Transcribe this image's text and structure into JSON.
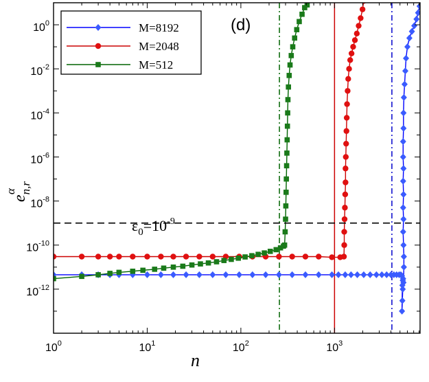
{
  "chart_data": {
    "type": "line",
    "panel_label": "(d)",
    "xlabel": "n",
    "ylabel": {
      "base": "e",
      "sub": "n,r",
      "sup": "α"
    },
    "x_scale": "log",
    "y_scale": "log",
    "xlim": [
      1,
      8192
    ],
    "ylim": [
      1e-14,
      10.0
    ],
    "grid": false,
    "legend_position": "top-left",
    "x_ticks": [
      {
        "value": 1,
        "base": "10",
        "exp": "0"
      },
      {
        "value": 10,
        "base": "10",
        "exp": "1"
      },
      {
        "value": 100,
        "base": "10",
        "exp": "2"
      },
      {
        "value": 1000,
        "base": "10",
        "exp": "3"
      }
    ],
    "y_ticks": [
      {
        "value": 1e-12,
        "base": "10",
        "exp": "-12"
      },
      {
        "value": 1e-10,
        "base": "10",
        "exp": "-10"
      },
      {
        "value": 1e-08,
        "base": "10",
        "exp": "-8"
      },
      {
        "value": 1e-06,
        "base": "10",
        "exp": "-6"
      },
      {
        "value": 0.0001,
        "base": "10",
        "exp": "-4"
      },
      {
        "value": 0.01,
        "base": "10",
        "exp": "-2"
      },
      {
        "value": 1,
        "base": "10",
        "exp": "0"
      }
    ],
    "threshold": {
      "value": 1e-09,
      "label_base": "ε",
      "label_sub": "0",
      "label_eq": "=10",
      "label_exp": "-9",
      "color": "#000000",
      "style": "dashed"
    },
    "vertical_lines": [
      {
        "x": 258,
        "color": "#006400",
        "style": "dashdot"
      },
      {
        "x": 1000,
        "color": "#cc0000",
        "style": "solid"
      },
      {
        "x": 4096,
        "color": "#0000cc",
        "style": "dashdot"
      }
    ],
    "series": [
      {
        "name": "M=8192",
        "color": "#0000ff",
        "marker_color": "#3a5bff",
        "marker": "diamond",
        "points": [
          [
            1,
            4.5e-12
          ],
          [
            2,
            4.5e-12
          ],
          [
            3,
            4.5e-12
          ],
          [
            4,
            4.5e-12
          ],
          [
            5,
            4.5e-12
          ],
          [
            7,
            4.5e-12
          ],
          [
            10,
            4.5e-12
          ],
          [
            14,
            4.5e-12
          ],
          [
            19,
            4.5e-12
          ],
          [
            26,
            4.5e-12
          ],
          [
            36,
            4.5e-12
          ],
          [
            50,
            4.5e-12
          ],
          [
            69,
            4.5e-12
          ],
          [
            96,
            4.5e-12
          ],
          [
            133,
            4.5e-12
          ],
          [
            184,
            4.5e-12
          ],
          [
            255,
            4.5e-12
          ],
          [
            353,
            4.5e-12
          ],
          [
            489,
            4.5e-12
          ],
          [
            677,
            4.5e-12
          ],
          [
            938,
            4.5e-12
          ],
          [
            1100,
            4.5e-12
          ],
          [
            1300,
            4.5e-12
          ],
          [
            1500,
            4.5e-12
          ],
          [
            1750,
            4.5e-12
          ],
          [
            2050,
            4.5e-12
          ],
          [
            2400,
            4.5e-12
          ],
          [
            2800,
            4.5e-12
          ],
          [
            3200,
            4.5e-12
          ],
          [
            3600,
            4.5e-12
          ],
          [
            4000,
            4.5e-12
          ],
          [
            4300,
            4.5e-12
          ],
          [
            4600,
            4.5e-12
          ],
          [
            4900,
            4.5e-12
          ],
          [
            5100,
            4.5e-12
          ],
          [
            5250,
            4e-12
          ],
          [
            5350,
            1e-12
          ],
          [
            5300,
            3e-13
          ],
          [
            5250,
            1e-13
          ],
          [
            5300,
            1.5e-12
          ],
          [
            5350,
            2.5e-12
          ],
          [
            5400,
            3e-12
          ],
          [
            5450,
            2e-12
          ],
          [
            5500,
            1e-11
          ],
          [
            5500,
            3e-11
          ],
          [
            5450,
            1e-10
          ],
          [
            5400,
            4e-10
          ],
          [
            5450,
            1.5e-09
          ],
          [
            5400,
            5e-09
          ],
          [
            5450,
            2e-08
          ],
          [
            5400,
            8e-08
          ],
          [
            5450,
            3e-07
          ],
          [
            5400,
            1e-06
          ],
          [
            5400,
            5e-06
          ],
          [
            5450,
            2e-05
          ],
          [
            5450,
            0.0001
          ],
          [
            5500,
            0.0005
          ],
          [
            5600,
            0.002
          ],
          [
            5700,
            0.008
          ],
          [
            5800,
            0.03
          ],
          [
            6000,
            0.1
          ],
          [
            6300,
            0.25
          ],
          [
            6700,
            0.5
          ],
          [
            7100,
            0.9
          ],
          [
            7500,
            1.8
          ],
          [
            7800,
            3.5
          ],
          [
            8100,
            7
          ]
        ]
      },
      {
        "name": "M=2048",
        "color": "#cc0000",
        "marker_color": "#e01010",
        "marker": "circle",
        "points": [
          [
            1,
            3e-11
          ],
          [
            2,
            3e-11
          ],
          [
            3,
            3e-11
          ],
          [
            4,
            3e-11
          ],
          [
            5,
            3e-11
          ],
          [
            7,
            3e-11
          ],
          [
            10,
            3e-11
          ],
          [
            14,
            3e-11
          ],
          [
            19,
            3e-11
          ],
          [
            26,
            3e-11
          ],
          [
            36,
            3e-11
          ],
          [
            50,
            3e-11
          ],
          [
            69,
            3e-11
          ],
          [
            96,
            3e-11
          ],
          [
            133,
            3e-11
          ],
          [
            184,
            3e-11
          ],
          [
            255,
            3e-11
          ],
          [
            353,
            3e-11
          ],
          [
            489,
            3e-11
          ],
          [
            677,
            3e-11
          ],
          [
            938,
            2.8e-11
          ],
          [
            1150,
            2.8e-11
          ],
          [
            1260,
            3e-11
          ],
          [
            1270,
            1e-10
          ],
          [
            1270,
            4e-10
          ],
          [
            1280,
            1.5e-09
          ],
          [
            1290,
            5e-09
          ],
          [
            1300,
            2e-08
          ],
          [
            1310,
            7e-08
          ],
          [
            1310,
            3e-07
          ],
          [
            1320,
            1e-06
          ],
          [
            1330,
            4e-06
          ],
          [
            1340,
            1.5e-05
          ],
          [
            1350,
            6e-05
          ],
          [
            1360,
            0.00025
          ],
          [
            1380,
            0.001
          ],
          [
            1400,
            0.0035
          ],
          [
            1430,
            0.01
          ],
          [
            1470,
            0.025
          ],
          [
            1520,
            0.05
          ],
          [
            1580,
            0.1
          ],
          [
            1650,
            0.2
          ],
          [
            1730,
            0.4
          ],
          [
            1810,
            0.9
          ],
          [
            1900,
            2
          ],
          [
            1990,
            5
          ],
          [
            2048,
            12
          ]
        ]
      },
      {
        "name": "M=512",
        "color": "#006400",
        "marker_color": "#1a7a1a",
        "marker": "square",
        "points": [
          [
            1,
            3e-12
          ],
          [
            2,
            3.8e-12
          ],
          [
            3,
            4.5e-12
          ],
          [
            4,
            5.2e-12
          ],
          [
            5,
            5.8e-12
          ],
          [
            7,
            6.5e-12
          ],
          [
            9,
            7.2e-12
          ],
          [
            12,
            8e-12
          ],
          [
            15,
            9e-12
          ],
          [
            19,
            1e-11
          ],
          [
            24,
            1.1e-11
          ],
          [
            30,
            1.25e-11
          ],
          [
            37,
            1.4e-11
          ],
          [
            45,
            1.55e-11
          ],
          [
            55,
            1.75e-11
          ],
          [
            66,
            2e-11
          ],
          [
            79,
            2.25e-11
          ],
          [
            94,
            2.55e-11
          ],
          [
            111,
            2.9e-11
          ],
          [
            131,
            3.3e-11
          ],
          [
            153,
            3.8e-11
          ],
          [
            178,
            4.4e-11
          ],
          [
            206,
            5.2e-11
          ],
          [
            238,
            6.2e-11
          ],
          [
            265,
            7.5e-11
          ],
          [
            285,
            9e-11
          ],
          [
            293,
            1e-10
          ],
          [
            297,
            4e-10
          ],
          [
            300,
            1.5e-09
          ],
          [
            302,
            6e-09
          ],
          [
            304,
            2.5e-08
          ],
          [
            306,
            1e-07
          ],
          [
            308,
            4e-07
          ],
          [
            310,
            1.5e-06
          ],
          [
            312,
            6e-06
          ],
          [
            314,
            2.5e-05
          ],
          [
            316,
            0.0001
          ],
          [
            318,
            0.0004
          ],
          [
            322,
            0.0015
          ],
          [
            328,
            0.005
          ],
          [
            335,
            0.015
          ],
          [
            345,
            0.04
          ],
          [
            358,
            0.1
          ],
          [
            375,
            0.25
          ],
          [
            395,
            0.6
          ],
          [
            420,
            1.4
          ],
          [
            450,
            3
          ],
          [
            480,
            6
          ],
          [
            510,
            8
          ]
        ]
      }
    ]
  }
}
